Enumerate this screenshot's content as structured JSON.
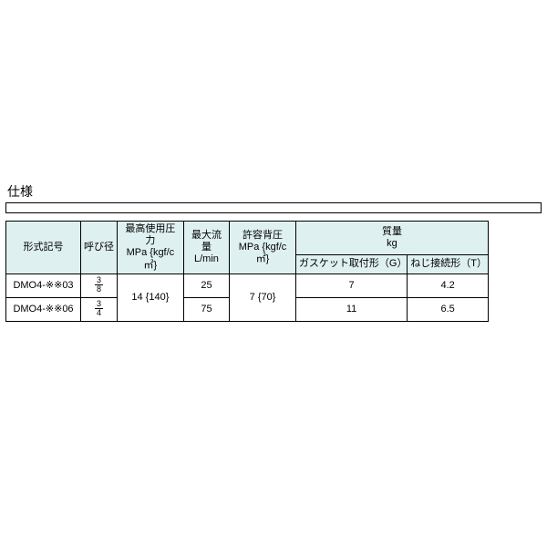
{
  "section_title": "仕様",
  "headers": {
    "model": "形式記号",
    "diameter": "呼び径",
    "max_pressure_l1": "最高使用圧力",
    "max_pressure_l2": "MPa {kgf/c㎡}",
    "max_flow_l1": "最大流量",
    "max_flow_l2": "L/min",
    "back_pressure_l1": "許容背圧",
    "back_pressure_l2": "MPa {kgf/c㎡}",
    "mass_l1": "質量",
    "mass_l2": "kg",
    "mass_gasket": "ガスケット取付形（G）",
    "mass_thread": "ねじ接続形（T）"
  },
  "merged": {
    "pressure_value": "14 {140}",
    "back_pressure_value": "7 {70}"
  },
  "rows": [
    {
      "model": "DMO4-※※03",
      "dia_num": "3",
      "dia_den": "8",
      "flow": "25",
      "mass_g": "7",
      "mass_t": "4.2"
    },
    {
      "model": "DMO4-※※06",
      "dia_num": "3",
      "dia_den": "4",
      "flow": "75",
      "mass_g": "11",
      "mass_t": "6.5"
    }
  ]
}
